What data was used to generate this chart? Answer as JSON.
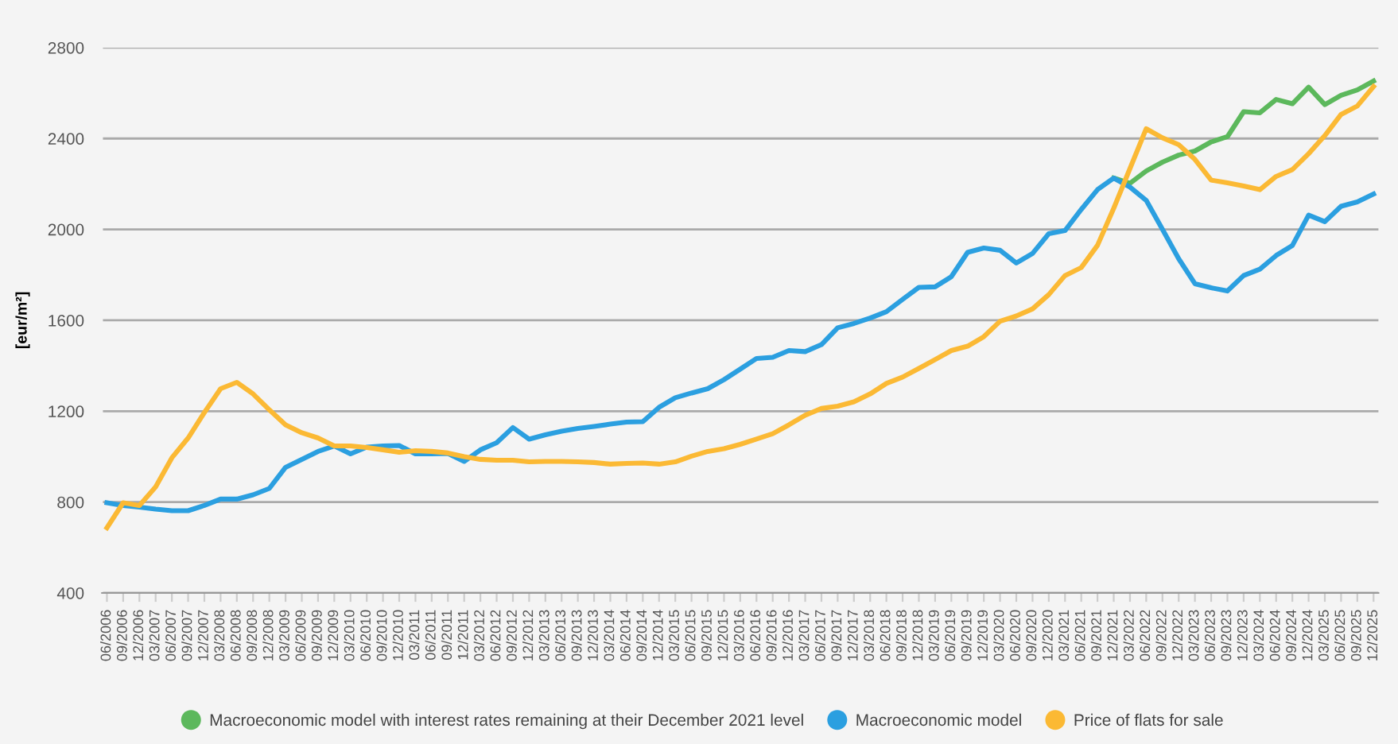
{
  "chart_data": {
    "type": "line",
    "ylabel": "[eur/m²]",
    "categories": [
      "06/2006",
      "09/2006",
      "12/2006",
      "03/2007",
      "06/2007",
      "09/2007",
      "12/2007",
      "03/2008",
      "06/2008",
      "09/2008",
      "12/2008",
      "03/2009",
      "06/2009",
      "09/2009",
      "12/2009",
      "03/2010",
      "06/2010",
      "09/2010",
      "12/2010",
      "03/2011",
      "06/2011",
      "09/2011",
      "12/2011",
      "03/2012",
      "06/2012",
      "09/2012",
      "12/2012",
      "03/2013",
      "06/2013",
      "09/2013",
      "12/2013",
      "03/2014",
      "06/2014",
      "09/2014",
      "12/2014",
      "03/2015",
      "06/2015",
      "09/2015",
      "12/2015",
      "03/2016",
      "06/2016",
      "09/2016",
      "12/2016",
      "03/2017",
      "06/2017",
      "09/2017",
      "12/2017",
      "03/2018",
      "06/2018",
      "09/2018",
      "12/2018",
      "03/2019",
      "06/2019",
      "09/2019",
      "12/2019",
      "03/2020",
      "06/2020",
      "09/2020",
      "12/2020",
      "03/2021",
      "06/2021",
      "09/2021",
      "12/2021",
      "03/2022",
      "06/2022",
      "09/2022",
      "12/2022",
      "03/2023",
      "06/2023",
      "09/2023",
      "12/2023",
      "03/2024",
      "06/2024",
      "09/2024",
      "12/2024",
      "03/2025",
      "06/2025",
      "09/2025",
      "12/2025"
    ],
    "series": [
      {
        "name": "Macroeconomic model with interest rates remaining at their December 2021 level",
        "color": "#5cb85c",
        "values": [
          null,
          null,
          null,
          null,
          null,
          null,
          null,
          null,
          null,
          null,
          null,
          null,
          null,
          null,
          null,
          null,
          null,
          null,
          null,
          null,
          null,
          null,
          null,
          null,
          null,
          null,
          null,
          null,
          null,
          null,
          null,
          null,
          null,
          null,
          null,
          null,
          null,
          null,
          null,
          null,
          null,
          null,
          null,
          null,
          null,
          null,
          null,
          null,
          null,
          null,
          null,
          null,
          null,
          null,
          null,
          null,
          null,
          null,
          null,
          null,
          null,
          null,
          2226,
          2203,
          2257,
          2296,
          2327,
          2345,
          2385,
          2408,
          2518,
          2513,
          2572,
          2553,
          2626,
          2549,
          2590,
          2614,
          2653
        ]
      },
      {
        "name": "Macroeconomic model",
        "color": "#2b9fe0",
        "values": [
          797,
          785,
          778,
          769,
          762,
          762,
          785,
          813,
          813,
          832,
          860,
          953,
          988,
          1023,
          1047,
          1012,
          1042,
          1047,
          1049,
          1012,
          1012,
          1014,
          979,
          1030,
          1061,
          1128,
          1077,
          1096,
          1112,
          1124,
          1133,
          1143,
          1152,
          1154,
          1217,
          1259,
          1280,
          1299,
          1339,
          1385,
          1432,
          1437,
          1467,
          1462,
          1493,
          1567,
          1586,
          1610,
          1638,
          1692,
          1745,
          1747,
          1792,
          1899,
          1918,
          1908,
          1852,
          1894,
          1981,
          1995,
          2088,
          2175,
          2226,
          2186,
          2128,
          2000,
          1871,
          1761,
          1743,
          1729,
          1797,
          1825,
          1885,
          1929,
          2063,
          2034,
          2102,
          2121,
          2156
        ]
      },
      {
        "name": "Price of flats for sale",
        "color": "#fbb934",
        "values": [
          687,
          797,
          785,
          867,
          995,
          1082,
          1194,
          1299,
          1327,
          1276,
          1206,
          1140,
          1105,
          1082,
          1047,
          1047,
          1040,
          1030,
          1019,
          1026,
          1023,
          1016,
          1000,
          988,
          984,
          984,
          977,
          979,
          979,
          977,
          974,
          967,
          970,
          972,
          967,
          977,
          1002,
          1023,
          1035,
          1054,
          1077,
          1101,
          1140,
          1182,
          1212,
          1222,
          1241,
          1276,
          1322,
          1350,
          1388,
          1427,
          1467,
          1486,
          1528,
          1596,
          1619,
          1650,
          1713,
          1797,
          1832,
          1930,
          2093,
          2268,
          2443,
          2403,
          2373,
          2308,
          2217,
          2205,
          2191,
          2175,
          2233,
          2263,
          2333,
          2413,
          2506,
          2543,
          2629
        ]
      }
    ],
    "ylim": [
      400,
      2800
    ],
    "yticks": [
      400,
      800,
      1200,
      1600,
      2000,
      2400,
      2800
    ],
    "grid": "y",
    "legend": "bottom",
    "marker": "none",
    "line_style": "solid"
  }
}
